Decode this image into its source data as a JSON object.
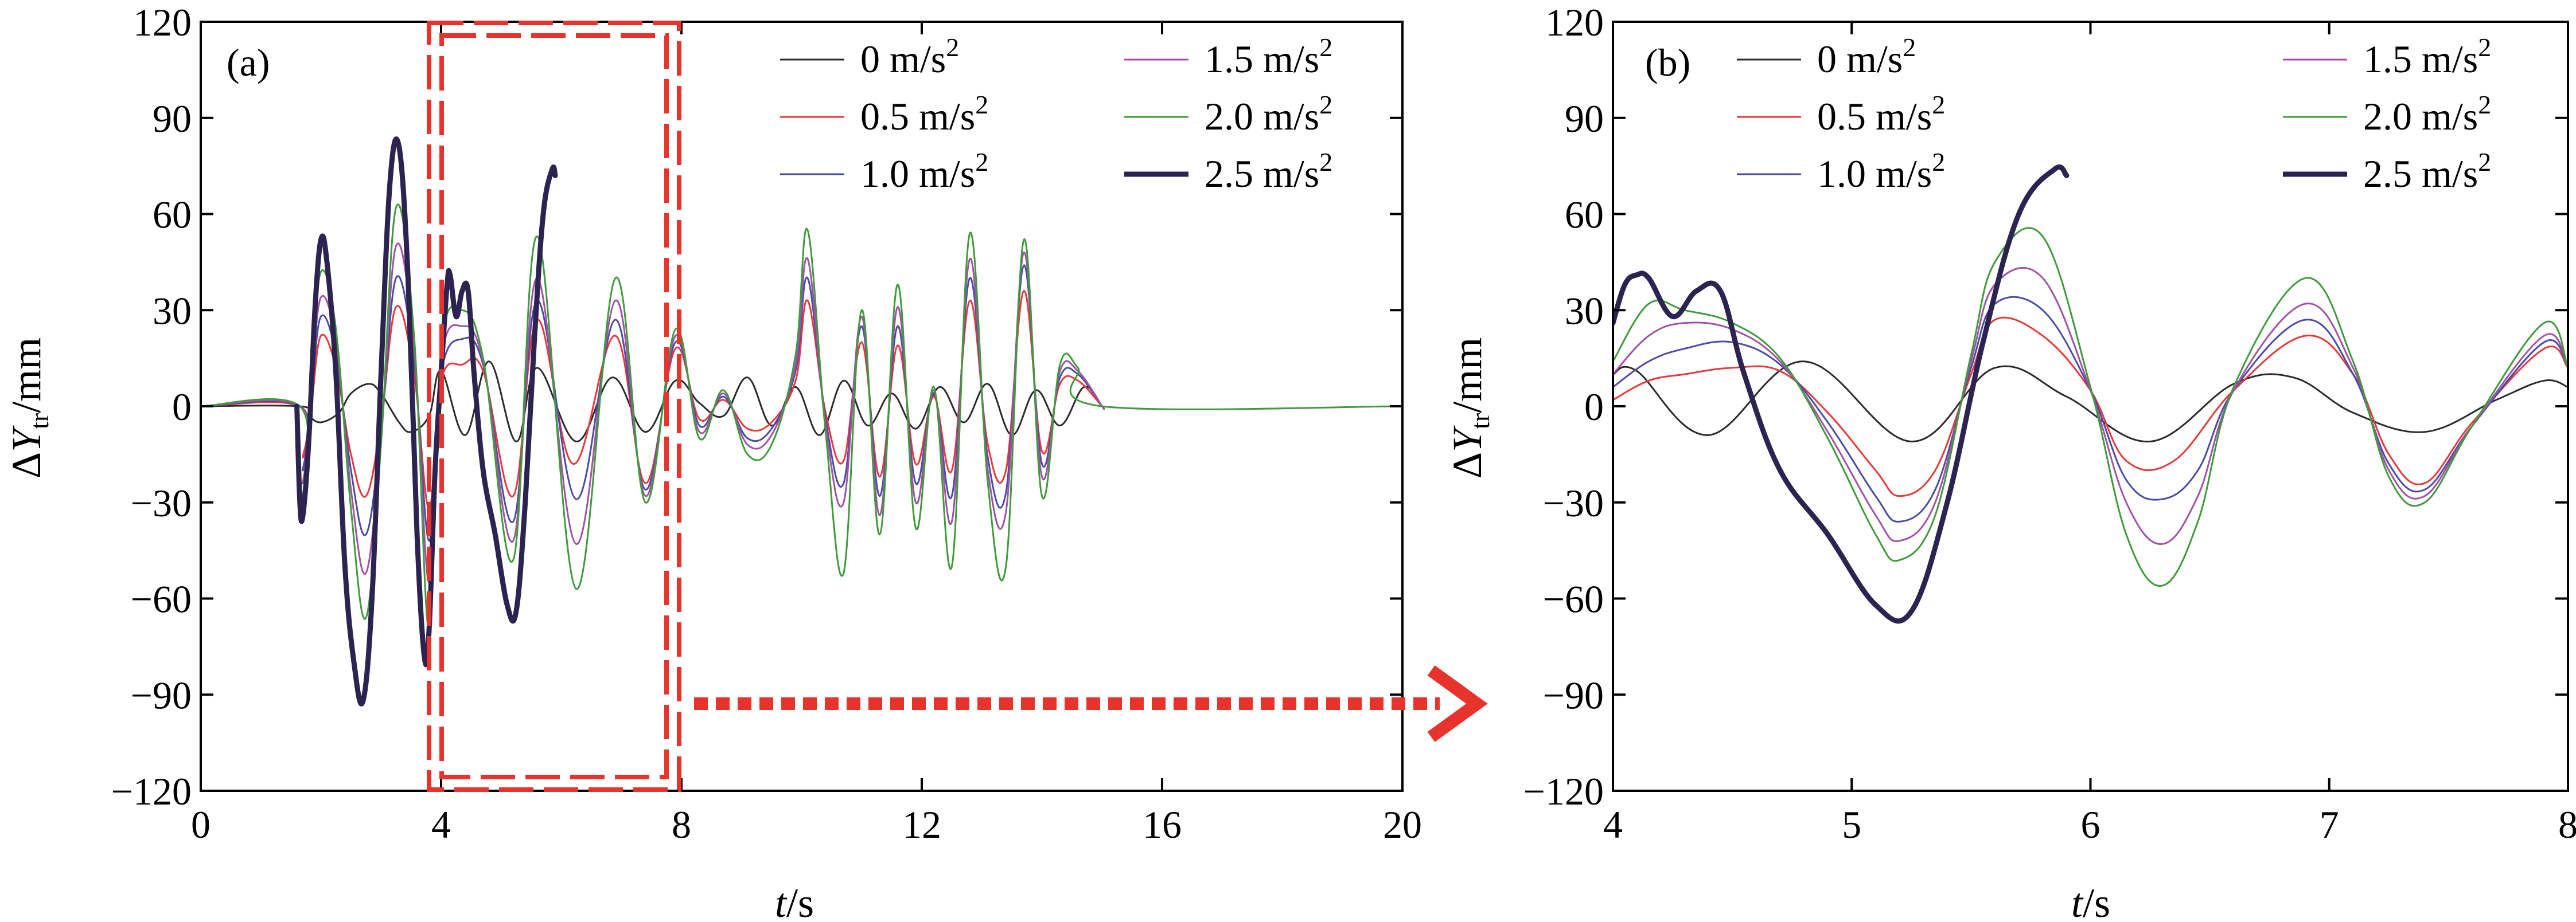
{
  "colors": {
    "s0": "#2b2b2b",
    "s05": "#e8383b",
    "s10": "#4b4ba6",
    "s15": "#a152a6",
    "s20": "#3f9a3a",
    "s25": "#2c2350",
    "highlight": "#e8332d"
  },
  "chart_data": [
    {
      "id": "a",
      "type": "line",
      "panel_label": "(a)",
      "xlabel": "t/s",
      "xlabel_parts": {
        "italic": "t",
        "rest": "/s"
      },
      "ylabel": "ΔYtr/mm",
      "ylabel_parts": {
        "delta": "Δ",
        "italic": "Y",
        "sub": "tr",
        "rest": "/mm"
      },
      "xlim": [
        0,
        20
      ],
      "ylim": [
        -120,
        120
      ],
      "xticks": [
        "0",
        "4",
        "8",
        "12",
        "16",
        "20"
      ],
      "yticks": [
        "120",
        "90",
        "60",
        "30",
        "0",
        "−30",
        "−60",
        "−90",
        "−120"
      ],
      "legend": [
        {
          "base": "0 m/s",
          "sup": "2",
          "series": "s0"
        },
        {
          "base": "0.5 m/s",
          "sup": "2",
          "series": "s05"
        },
        {
          "base": "1.0 m/s",
          "sup": "2",
          "series": "s10"
        },
        {
          "base": "1.5 m/s",
          "sup": "2",
          "series": "s15"
        },
        {
          "base": "2.0 m/s",
          "sup": "2",
          "series": "s20"
        },
        {
          "base": "2.5 m/s",
          "sup": "2",
          "series": "s25"
        }
      ],
      "series": [
        {
          "name": "0 m/s2",
          "key": "s0",
          "x": [
            0,
            1.65,
            1.8,
            2.0,
            2.3,
            2.5,
            2.8,
            3.0,
            3.3,
            3.5,
            3.8,
            4.0,
            4.4,
            4.8,
            5.25,
            5.6,
            6.25,
            6.85,
            7.4,
            7.9,
            8.3,
            8.7,
            9.1,
            9.5,
            9.9,
            10.3,
            10.7,
            11.1,
            11.5,
            11.9,
            12.3,
            12.7,
            13.1,
            13.5,
            13.9,
            14.3,
            14.7,
            15.0,
            15.0
          ],
          "values": [
            0,
            0,
            -3,
            -5,
            -2,
            4,
            7,
            4,
            -5,
            -8,
            -3,
            11,
            -9,
            14,
            -11,
            12,
            -11,
            9,
            -8,
            8,
            1,
            -3,
            9,
            -6,
            6,
            -9,
            8,
            -6,
            4,
            -7,
            6,
            -5,
            7,
            -9,
            5,
            -6,
            6,
            0,
            0
          ]
        },
        {
          "name": "0.5 m/s2",
          "key": "s05",
          "x": [
            0,
            1.65,
            1.7,
            1.85,
            2.0,
            2.25,
            2.5,
            2.75,
            3.0,
            3.25,
            3.55,
            3.8,
            4.0,
            4.35,
            4.7,
            5.2,
            5.6,
            6.2,
            6.9,
            7.4,
            7.9,
            8.3,
            8.7,
            9.1,
            9.5,
            9.9,
            10.1,
            10.4,
            10.7,
            11.0,
            11.3,
            11.6,
            11.9,
            12.2,
            12.5,
            12.8,
            13.1,
            13.4,
            13.7,
            14.0,
            14.3,
            14.6,
            15.0,
            15.0
          ],
          "values": [
            0,
            0,
            -16,
            2,
            22,
            12,
            -15,
            -28,
            -5,
            31,
            10,
            -32,
            8,
            13,
            11,
            -28,
            27,
            -18,
            22,
            -24,
            18,
            -4,
            2,
            -7,
            -5,
            8,
            33,
            -2,
            -17,
            20,
            -22,
            19,
            -18,
            3,
            -20,
            33,
            -12,
            -20,
            36,
            -14,
            7,
            8,
            0,
            0
          ]
        },
        {
          "name": "1.0 m/s2",
          "key": "s10",
          "x": [
            0,
            1.65,
            1.7,
            1.85,
            2.0,
            2.25,
            2.5,
            2.75,
            3.0,
            3.25,
            3.55,
            3.8,
            4.0,
            4.35,
            4.7,
            5.2,
            5.6,
            6.25,
            6.9,
            7.4,
            7.9,
            8.3,
            8.7,
            9.1,
            9.5,
            9.9,
            10.1,
            10.4,
            10.7,
            11.0,
            11.3,
            11.6,
            11.9,
            12.2,
            12.5,
            12.8,
            13.1,
            13.4,
            13.7,
            14.0,
            14.3,
            14.6,
            15.0,
            15.0
          ],
          "values": [
            0,
            0,
            -20,
            5,
            28,
            16,
            -20,
            -40,
            -8,
            40,
            14,
            -42,
            10,
            21,
            13,
            -36,
            33,
            -29,
            27,
            -26,
            20,
            -6,
            3,
            -10,
            -7,
            11,
            40,
            -4,
            -24,
            25,
            -28,
            25,
            -24,
            4,
            -28,
            40,
            -16,
            -27,
            44,
            -18,
            9,
            10,
            0,
            0
          ]
        },
        {
          "name": "1.5 m/s2",
          "key": "s15",
          "x": [
            0,
            1.65,
            1.7,
            1.85,
            2.0,
            2.25,
            2.5,
            2.75,
            3.0,
            3.25,
            3.55,
            3.8,
            4.0,
            4.35,
            4.7,
            5.2,
            5.6,
            6.25,
            6.9,
            7.4,
            7.9,
            8.3,
            8.7,
            9.1,
            9.5,
            9.9,
            10.1,
            10.4,
            10.7,
            11.0,
            11.3,
            11.6,
            11.9,
            12.2,
            12.5,
            12.8,
            13.1,
            13.4,
            13.7,
            14.0,
            14.3,
            14.6,
            15.0,
            15.0
          ],
          "values": [
            0,
            0,
            -24,
            8,
            34,
            20,
            -26,
            -52,
            -10,
            50,
            18,
            -55,
            14,
            25,
            14,
            -42,
            40,
            -43,
            33,
            -28,
            22,
            -8,
            4,
            -12,
            -9,
            13,
            46,
            -6,
            -30,
            28,
            -34,
            31,
            -30,
            5,
            -36,
            46,
            -20,
            -33,
            48,
            -22,
            11,
            11,
            0,
            0
          ]
        },
        {
          "name": "2.0 m/s2",
          "key": "s20",
          "x": [
            0,
            1.65,
            1.7,
            1.85,
            2.0,
            2.25,
            2.5,
            2.75,
            3.0,
            3.25,
            3.55,
            3.8,
            4.0,
            4.35,
            4.7,
            5.2,
            5.6,
            6.25,
            6.9,
            7.4,
            7.9,
            8.3,
            8.7,
            9.1,
            9.5,
            9.9,
            10.1,
            10.4,
            10.7,
            11.0,
            11.3,
            11.6,
            11.9,
            12.2,
            12.5,
            12.8,
            13.1,
            13.4,
            13.7,
            14.0,
            14.3,
            14.6,
            15.0,
            20.0
          ],
          "values": [
            0,
            0,
            -28,
            10,
            42,
            24,
            -32,
            -66,
            -12,
            62,
            22,
            -70,
            18,
            30,
            15,
            -48,
            53,
            -57,
            40,
            -30,
            24,
            -10,
            5,
            -15,
            -12,
            16,
            55,
            -8,
            -52,
            30,
            -40,
            38,
            -38,
            6,
            -50,
            54,
            -24,
            -50,
            52,
            -28,
            13,
            12,
            0,
            0
          ]
        },
        {
          "name": "2.5 m/s2",
          "key": "s25",
          "x": [
            1.6,
            1.65,
            1.7,
            1.8,
            1.9,
            2.0,
            2.1,
            2.25,
            2.4,
            2.55,
            2.7,
            2.85,
            3.0,
            3.15,
            3.3,
            3.45,
            3.6,
            3.72,
            3.8,
            3.9,
            4.0,
            4.1,
            4.15,
            4.25,
            4.35,
            4.45,
            4.55,
            4.7,
            4.9,
            5.1,
            5.25,
            5.4,
            5.55,
            5.7,
            5.85,
            5.9
          ],
          "values": [
            0,
            -30,
            -34,
            -10,
            30,
            52,
            45,
            10,
            -50,
            -80,
            -92,
            -60,
            10,
            70,
            81,
            40,
            -40,
            -78,
            -70,
            -20,
            10,
            38,
            41,
            28,
            36,
            36,
            10,
            -20,
            -40,
            -62,
            -64,
            -30,
            20,
            60,
            74,
            72
          ]
        }
      ]
    },
    {
      "id": "b",
      "type": "line",
      "panel_label": "(b)",
      "xlabel": "t/s",
      "xlabel_parts": {
        "italic": "t",
        "rest": "/s"
      },
      "ylabel": "ΔYtr/mm",
      "ylabel_parts": {
        "delta": "Δ",
        "italic": "Y",
        "sub": "tr",
        "rest": "/mm"
      },
      "xlim": [
        4,
        8
      ],
      "ylim": [
        -120,
        120
      ],
      "xticks": [
        "4",
        "5",
        "6",
        "7",
        "8"
      ],
      "yticks": [
        "120",
        "90",
        "60",
        "30",
        "0",
        "−30",
        "−60",
        "−90",
        "−120"
      ],
      "legend": [
        {
          "base": "0 m/s",
          "sup": "2",
          "series": "s0"
        },
        {
          "base": "0.5 m/s",
          "sup": "2",
          "series": "s05"
        },
        {
          "base": "1.0 m/s",
          "sup": "2",
          "series": "s10"
        },
        {
          "base": "1.5 m/s",
          "sup": "2",
          "series": "s15"
        },
        {
          "base": "2.0 m/s",
          "sup": "2",
          "series": "s20"
        },
        {
          "base": "2.5 m/s",
          "sup": "2",
          "series": "s25"
        }
      ],
      "series": [
        {
          "name": "0 m/s2",
          "key": "s0",
          "x": [
            4.0,
            4.1,
            4.4,
            4.8,
            5.25,
            5.6,
            5.9,
            6.25,
            6.6,
            6.85,
            7.1,
            7.4,
            7.7,
            7.9,
            8.0
          ],
          "values": [
            10,
            11,
            -9,
            14,
            -11,
            12,
            3,
            -11,
            7,
            9,
            -2,
            -8,
            2,
            8,
            6
          ]
        },
        {
          "name": "0.5 m/s2",
          "key": "s05",
          "x": [
            4.0,
            4.15,
            4.3,
            4.5,
            4.7,
            4.9,
            5.1,
            5.2,
            5.35,
            5.5,
            5.6,
            5.8,
            6.0,
            6.15,
            6.35,
            6.6,
            6.9,
            7.1,
            7.25,
            7.4,
            7.6,
            7.9,
            8.0
          ],
          "values": [
            2,
            8,
            10,
            12,
            11,
            -2,
            -20,
            -28,
            -20,
            10,
            27,
            22,
            5,
            -17,
            -17,
            5,
            22,
            10,
            -15,
            -24,
            -5,
            18,
            12
          ]
        },
        {
          "name": "1.0 m/s2",
          "key": "s10",
          "x": [
            4.0,
            4.15,
            4.3,
            4.5,
            4.7,
            4.9,
            5.1,
            5.2,
            5.35,
            5.5,
            5.6,
            5.8,
            6.0,
            6.15,
            6.3,
            6.45,
            6.6,
            6.9,
            7.1,
            7.25,
            7.4,
            7.6,
            7.9,
            8.0
          ],
          "values": [
            6,
            14,
            18,
            20,
            13,
            -5,
            -28,
            -36,
            -26,
            12,
            32,
            30,
            5,
            -23,
            -29,
            -20,
            5,
            27,
            10,
            -18,
            -26,
            -6,
            20,
            12
          ]
        },
        {
          "name": "1.5 m/s2",
          "key": "s15",
          "x": [
            4.0,
            4.15,
            4.3,
            4.5,
            4.7,
            4.9,
            5.1,
            5.2,
            5.35,
            5.5,
            5.6,
            5.8,
            6.0,
            6.15,
            6.3,
            6.45,
            6.6,
            6.9,
            7.1,
            7.25,
            7.4,
            7.6,
            7.9,
            8.0
          ],
          "values": [
            10,
            22,
            26,
            24,
            14,
            -8,
            -34,
            -42,
            -30,
            14,
            38,
            40,
            5,
            -30,
            -43,
            -28,
            5,
            32,
            12,
            -20,
            -28,
            -6,
            22,
            12
          ]
        },
        {
          "name": "2.0 m/s2",
          "key": "s20",
          "x": [
            4.0,
            4.15,
            4.3,
            4.5,
            4.7,
            4.9,
            5.1,
            5.2,
            5.35,
            5.5,
            5.6,
            5.8,
            6.0,
            6.15,
            6.3,
            6.45,
            6.6,
            6.9,
            7.1,
            7.25,
            7.4,
            7.6,
            7.9,
            8.0
          ],
          "values": [
            14,
            32,
            30,
            26,
            15,
            -10,
            -40,
            -48,
            -34,
            16,
            45,
            53,
            6,
            -40,
            -56,
            -36,
            6,
            40,
            14,
            -22,
            -30,
            -6,
            26,
            12
          ]
        },
        {
          "name": "2.5 m/s2",
          "key": "s25",
          "x": [
            4.0,
            4.05,
            4.1,
            4.15,
            4.25,
            4.35,
            4.45,
            4.55,
            4.7,
            4.9,
            5.1,
            5.25,
            5.4,
            5.55,
            5.7,
            5.85,
            5.9
          ],
          "values": [
            26,
            38,
            41,
            40,
            28,
            36,
            36,
            10,
            -20,
            -40,
            -62,
            -64,
            -30,
            20,
            60,
            74,
            72
          ]
        }
      ]
    }
  ]
}
